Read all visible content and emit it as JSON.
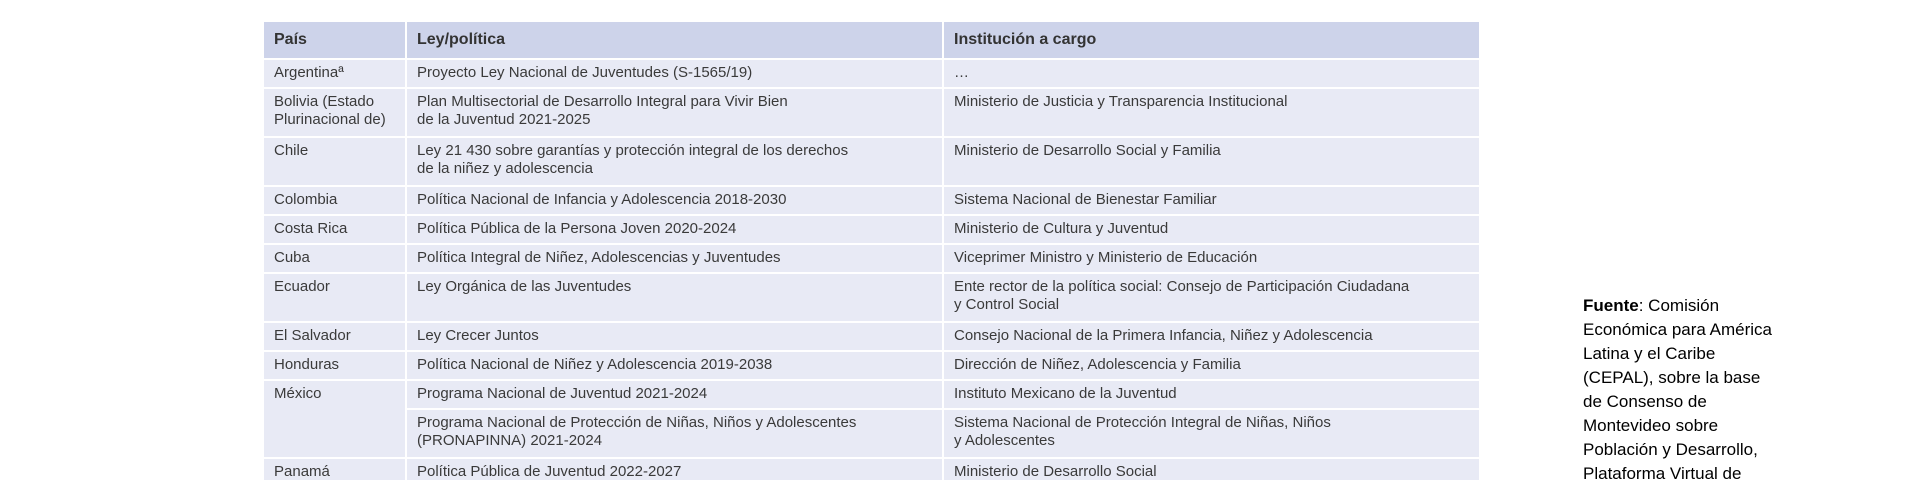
{
  "table": {
    "headers": [
      "País",
      "Ley/política",
      "Institución a cargo"
    ],
    "rows": [
      [
        "Argentinaª",
        "Proyecto Ley Nacional de Juventudes (S-1565/19)",
        "…"
      ],
      [
        "Bolivia (Estado\nPlurinacional de)",
        "Plan Multisectorial de Desarrollo Integral para Vivir Bien\nde la Juventud 2021-2025",
        "Ministerio de Justicia y Transparencia Institucional"
      ],
      [
        "Chile",
        "Ley 21 430 sobre garantías y protección integral de los derechos\nde la niñez y adolescencia",
        "Ministerio de Desarrollo Social y Familia"
      ],
      [
        "Colombia",
        "Política Nacional de Infancia y Adolescencia 2018-2030",
        "Sistema Nacional de Bienestar Familiar"
      ],
      [
        "Costa Rica",
        "Política Pública de la Persona Joven 2020-2024",
        "Ministerio de Cultura y Juventud"
      ],
      [
        "Cuba",
        "Política Integral de Niñez, Adolescencias y Juventudes",
        "Viceprimer Ministro y Ministerio de Educación"
      ],
      [
        "Ecuador",
        "Ley Orgánica de las Juventudes",
        "Ente rector de la política social: Consejo de Participación Ciudadana\ny Control Social"
      ],
      [
        "El Salvador",
        "Ley Crecer Juntos",
        "Consejo Nacional de la Primera Infancia, Niñez y Adolescencia"
      ],
      [
        "Honduras",
        "Política Nacional de Niñez y Adolescencia 2019-2038",
        "Dirección de Niñez, Adolescencia y Familia"
      ],
      [
        "México",
        "Programa Nacional de Juventud 2021-2024",
        "Instituto Mexicano de la Juventud"
      ],
      [
        null,
        "Programa Nacional de Protección de Niñas, Niños y Adolescentes\n(PRONAPINNA) 2021-2024",
        "Sistema Nacional de Protección Integral de Niñas, Niños\ny Adolescentes"
      ],
      [
        "Panamá",
        "Política Pública de Juventud 2022-2027",
        "Ministerio de Desarrollo Social"
      ]
    ]
  },
  "source": {
    "label": "Fuente",
    "lines": [
      ": Comisión",
      "Económica para América",
      "Latina y el Caribe",
      "(CEPAL), sobre la base",
      "de Consenso de",
      "Montevideo sobre",
      "Población y Desarrollo,",
      "Plataforma Virtual de"
    ]
  }
}
